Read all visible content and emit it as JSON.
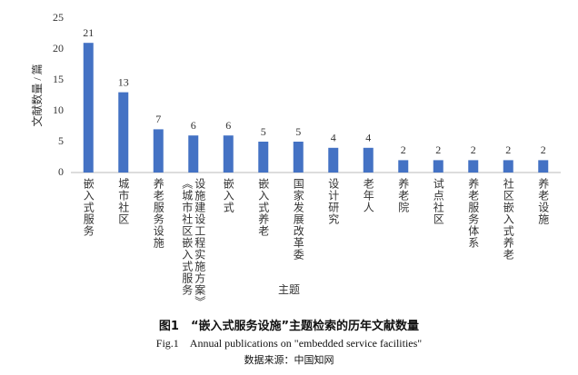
{
  "chart_data": {
    "type": "bar",
    "title": "图1　“嵌入式服务设施”主题检索的历年文献数量",
    "subtitle": "Fig.1　Annual publications on \"embedded service facilities\"",
    "source": "数据来源：中国知网",
    "xlabel": "主题",
    "ylabel": "文献数量 / 篇",
    "categories": [
      "嵌入式服务",
      "城市社区",
      "养老服务设施",
      "《城市社区嵌入式服务设施建设工程实施方案》",
      "嵌入式",
      "嵌入式养老",
      "国家发展改革委",
      "设计研究",
      "老年人",
      "养老院",
      "试点社区",
      "养老服务体系",
      "社区嵌入式养老",
      "养老设施"
    ],
    "values": [
      21,
      13,
      7,
      6,
      6,
      5,
      5,
      4,
      4,
      2,
      2,
      2,
      2,
      2
    ],
    "color": "#4472c4",
    "ylim": [
      0,
      25
    ],
    "yticks": [
      0,
      5,
      10,
      15,
      20,
      25
    ],
    "grid": false
  }
}
